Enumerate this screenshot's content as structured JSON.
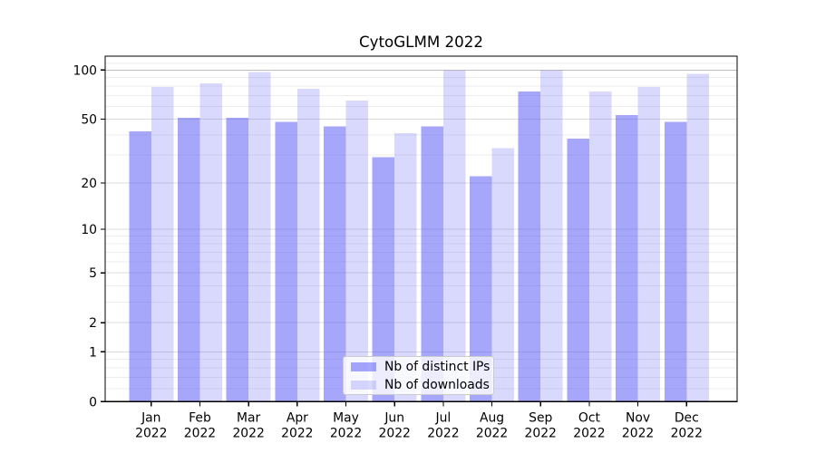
{
  "chart_data": {
    "type": "bar",
    "title": "CytoGLMM 2022",
    "x": {
      "months": [
        "Jan",
        "Feb",
        "Mar",
        "Apr",
        "May",
        "Jun",
        "Jul",
        "Aug",
        "Sep",
        "Oct",
        "Nov",
        "Dec"
      ],
      "year": "2022"
    },
    "series": [
      {
        "name": "Nb of distinct IPs",
        "color": "rgba(77,77,245,0.50)",
        "values": [
          42,
          51,
          51,
          48,
          45,
          29,
          45,
          22,
          74,
          38,
          53,
          48
        ]
      },
      {
        "name": "Nb of downloads",
        "color": "rgba(77,77,245,0.21)",
        "values": [
          79,
          83,
          97,
          77,
          65,
          41,
          100,
          33,
          100,
          74,
          79,
          95
        ]
      }
    ],
    "yscale": "log1p",
    "y_ticks": [
      0,
      1,
      2,
      5,
      10,
      20,
      50,
      100
    ],
    "y_minor_gridlines": [
      0.2,
      0.4,
      0.6,
      0.8,
      3,
      4,
      6,
      7,
      8,
      9,
      30,
      40,
      60,
      70,
      80,
      90,
      110
    ],
    "ylim": [
      0,
      122
    ],
    "grid": true,
    "legend_position": "lower center",
    "colors": {
      "major_grid": "#dcdcdc",
      "minor_grid": "#ededed",
      "top_grid": "#bdbdbd",
      "spine": "#000000",
      "text": "#000000"
    }
  }
}
